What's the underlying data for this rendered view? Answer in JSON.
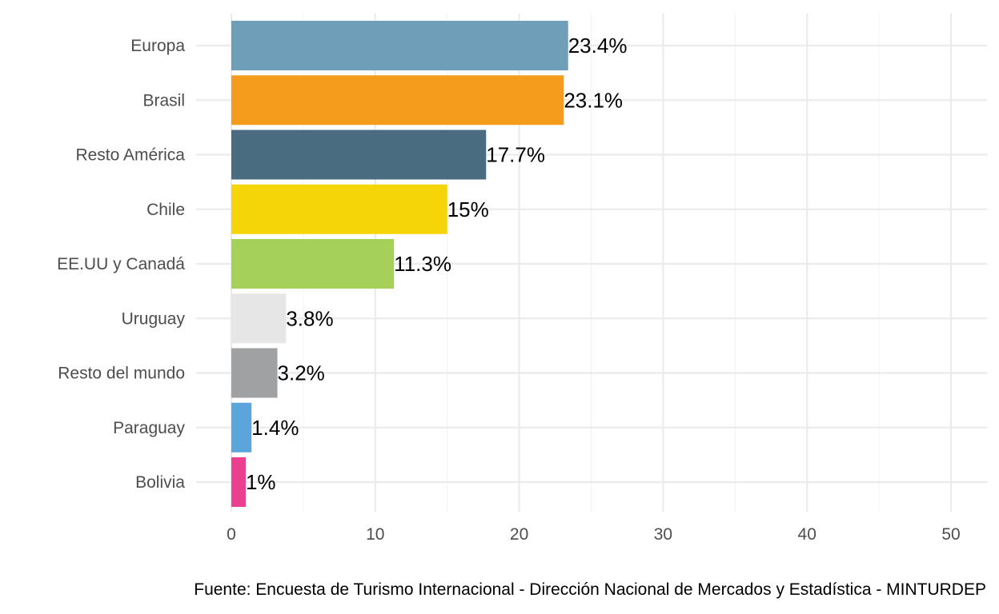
{
  "chart_data": {
    "type": "bar",
    "orientation": "horizontal",
    "categories": [
      "Europa",
      "Brasil",
      "Resto América",
      "Chile",
      "EE.UU y Canadá",
      "Uruguay",
      "Resto del mundo",
      "Paraguay",
      "Bolivia"
    ],
    "values": [
      23.4,
      23.1,
      17.7,
      15,
      11.3,
      3.8,
      3.2,
      1.4,
      1
    ],
    "labels": [
      "23.4%",
      "23.1%",
      "17.7%",
      "15%",
      "11.3%",
      "3.8%",
      "3.2%",
      "1.4%",
      "1%"
    ],
    "colors": [
      "#6f9eb8",
      "#f59c1d",
      "#4a6c80",
      "#f5d508",
      "#a5d15a",
      "#e6e6e6",
      "#a0a1a3",
      "#5aa6dc",
      "#ec3f8f"
    ],
    "xticks": [
      "0",
      "10",
      "20",
      "30",
      "40",
      "50"
    ],
    "xlim": [
      0,
      52
    ],
    "grid": true,
    "caption": "Fuente: Encuesta de Turismo Internacional - Dirección Nacional de Mercados y Estadística - MINTURDEP"
  }
}
